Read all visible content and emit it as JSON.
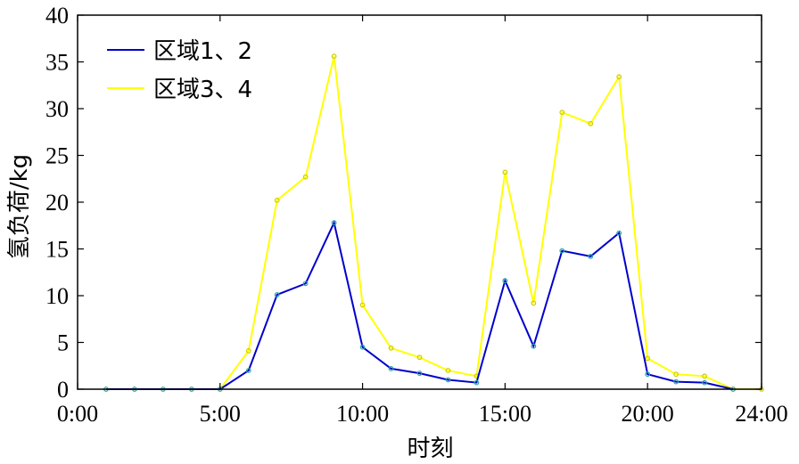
{
  "chart_data": {
    "type": "line",
    "xlabel": "时刻",
    "ylabel": "氢负荷/kg",
    "xlim": [
      0,
      24
    ],
    "ylim": [
      0,
      40
    ],
    "x_ticks": [
      {
        "value": 0,
        "label": "0:00"
      },
      {
        "value": 5,
        "label": "5:00"
      },
      {
        "value": 10,
        "label": "10:00"
      },
      {
        "value": 15,
        "label": "15:00"
      },
      {
        "value": 20,
        "label": "20:00"
      },
      {
        "value": 24,
        "label": "24:00"
      }
    ],
    "y_ticks": [
      0,
      5,
      10,
      15,
      20,
      25,
      30,
      35,
      40
    ],
    "grid": false,
    "legend_position": "top-left",
    "series": [
      {
        "name": "区域1、2",
        "color": "#0000cc",
        "marker_color": "#2aa7a7",
        "points": [
          [
            1,
            0
          ],
          [
            2,
            0
          ],
          [
            3,
            0
          ],
          [
            4,
            0
          ],
          [
            5,
            0
          ],
          [
            6,
            2
          ],
          [
            7,
            10.1
          ],
          [
            8,
            11.3
          ],
          [
            9,
            17.8
          ],
          [
            10,
            4.5
          ],
          [
            11,
            2.2
          ],
          [
            12,
            1.7
          ],
          [
            13,
            1.0
          ],
          [
            14,
            0.7
          ],
          [
            15,
            11.6
          ],
          [
            16,
            4.6
          ],
          [
            17,
            14.8
          ],
          [
            18,
            14.2
          ],
          [
            19,
            16.7
          ],
          [
            20,
            1.6
          ],
          [
            21,
            0.8
          ],
          [
            22,
            0.7
          ],
          [
            23,
            0
          ]
        ]
      },
      {
        "name": "区域3、4",
        "color": "#ffff00",
        "marker_color": "#cccc00",
        "points": [
          [
            1,
            0
          ],
          [
            2,
            0
          ],
          [
            3,
            0
          ],
          [
            4,
            0
          ],
          [
            5,
            0
          ],
          [
            6,
            4.1
          ],
          [
            7,
            20.2
          ],
          [
            8,
            22.7
          ],
          [
            9,
            35.6
          ],
          [
            10,
            9.0
          ],
          [
            11,
            4.4
          ],
          [
            12,
            3.4
          ],
          [
            13,
            2.0
          ],
          [
            14,
            1.4
          ],
          [
            15,
            23.2
          ],
          [
            16,
            9.2
          ],
          [
            17,
            29.6
          ],
          [
            18,
            28.4
          ],
          [
            19,
            33.4
          ],
          [
            20,
            3.3
          ],
          [
            21,
            1.6
          ],
          [
            22,
            1.4
          ],
          [
            23,
            0
          ],
          [
            24,
            0
          ]
        ]
      }
    ]
  }
}
